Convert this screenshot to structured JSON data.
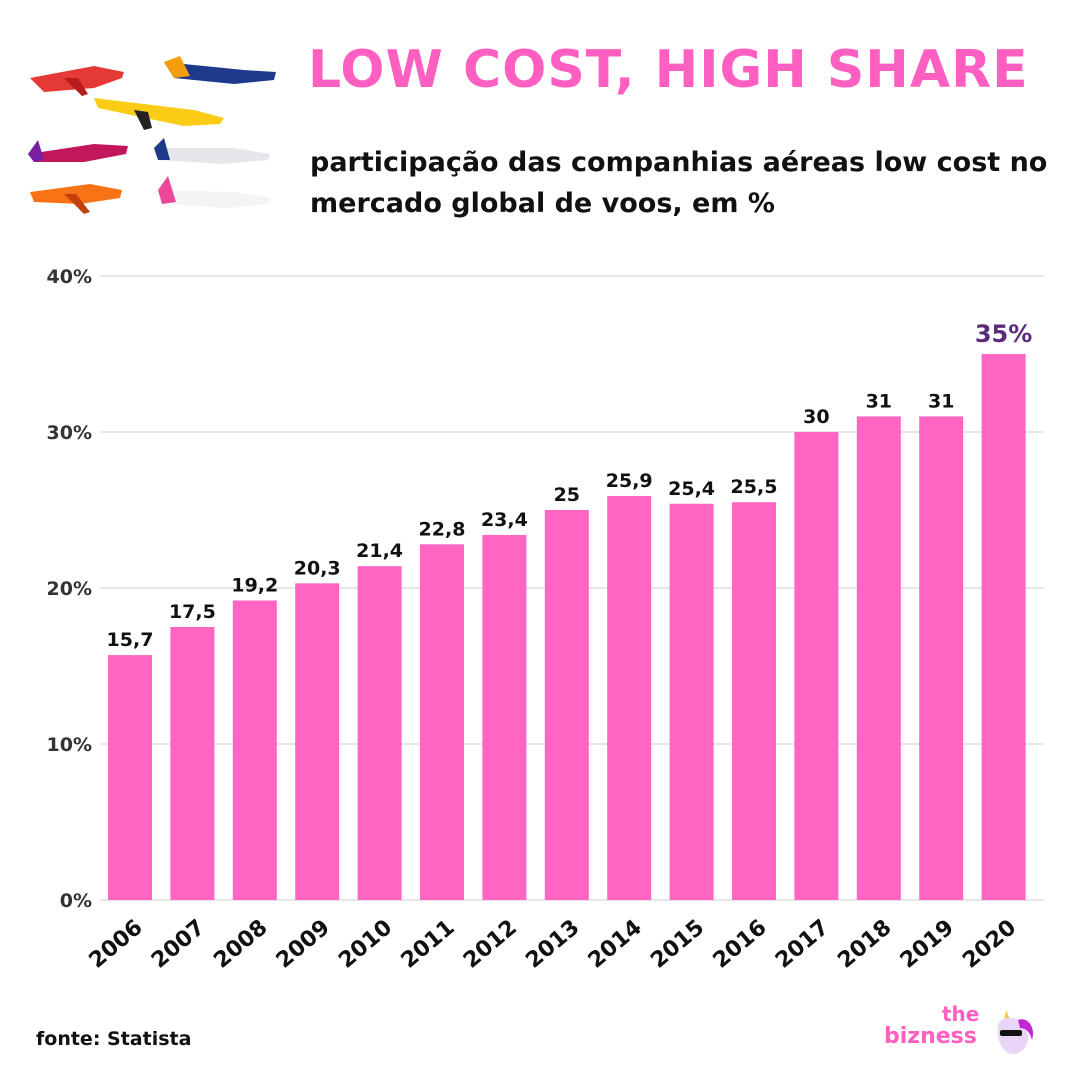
{
  "header": {
    "title": "LOW COST, HIGH SHARE",
    "subtitle": "participação das companhias aéreas low cost no mercado global de voos, em %"
  },
  "footer": {
    "source": "fonte: Statista",
    "logo_the": "the",
    "logo_bizness": "bizness"
  },
  "colors": {
    "bar": "#ff66c4",
    "title": "#ff5fc1",
    "highlight_label": "#5a2b7a",
    "grid": "#cccccc"
  },
  "chart_data": {
    "type": "bar",
    "categories": [
      "2006",
      "2007",
      "2008",
      "2009",
      "2010",
      "2011",
      "2012",
      "2013",
      "2014",
      "2015",
      "2016",
      "2017",
      "2018",
      "2019",
      "2020"
    ],
    "values": [
      15.7,
      17.5,
      19.2,
      20.3,
      21.4,
      22.8,
      23.4,
      25,
      25.9,
      25.4,
      25.5,
      30,
      31,
      31,
      35
    ],
    "data_labels": [
      "15,7",
      "17,5",
      "19,2",
      "20,3",
      "21,4",
      "22,8",
      "23,4",
      "25",
      "25,9",
      "25,4",
      "25,5",
      "30",
      "31",
      "31",
      "35%"
    ],
    "yticks": [
      "0%",
      "10%",
      "20%",
      "30%",
      "40%"
    ],
    "ylim": [
      0,
      40
    ],
    "grid": true,
    "highlight_index": 14
  }
}
